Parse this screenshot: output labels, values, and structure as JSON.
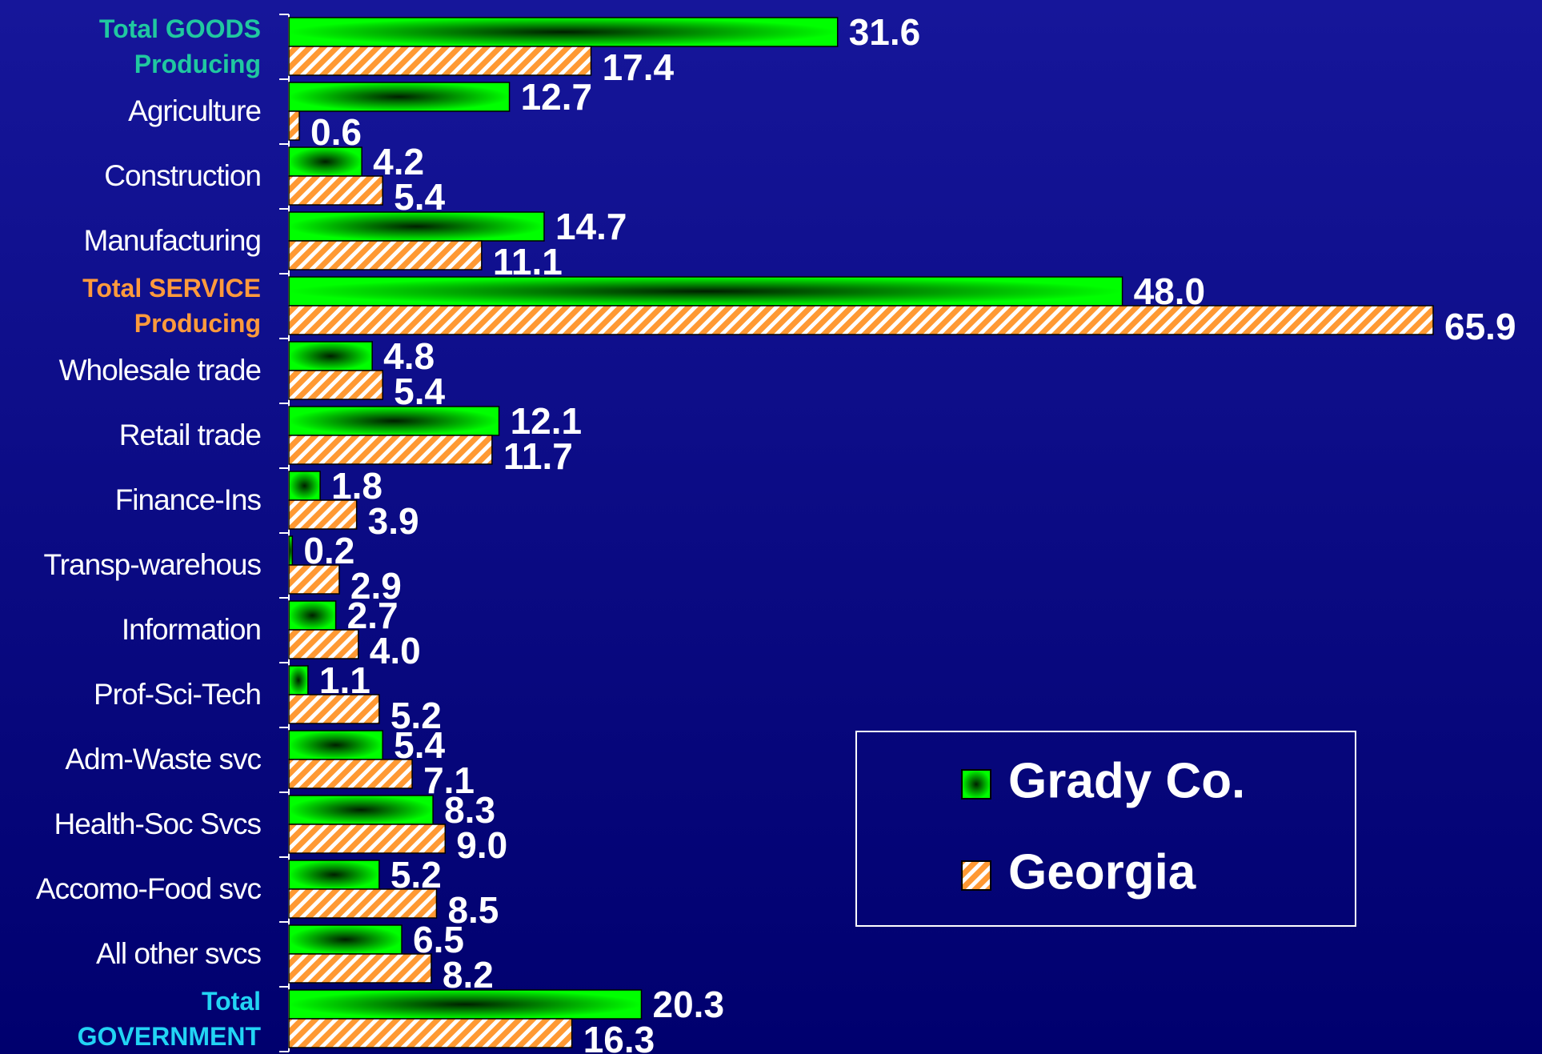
{
  "chart_data": {
    "type": "barh",
    "categories": [
      "Total GOODS\nProducing",
      "Agriculture",
      "Construction",
      "Manufacturing",
      "Total SERVICE\nProducing",
      "Wholesale trade",
      "Retail trade",
      "Finance-Ins",
      "Transp-warehous",
      "Information",
      "Prof-Sci-Tech",
      "Adm-Waste svc",
      "Health-Soc Svcs",
      "Accomo-Food svc",
      "All other svcs",
      "Total\nGOVERNMENT"
    ],
    "category_colors": [
      "#20c8a0",
      "#ffffff",
      "#ffffff",
      "#ffffff",
      "#ff9a3c",
      "#ffffff",
      "#ffffff",
      "#ffffff",
      "#ffffff",
      "#ffffff",
      "#ffffff",
      "#ffffff",
      "#ffffff",
      "#ffffff",
      "#ffffff",
      "#22d4f4"
    ],
    "series": [
      {
        "name": "Grady Co.",
        "color": "#00ff00",
        "values": [
          31.6,
          12.7,
          4.2,
          14.7,
          48.0,
          4.8,
          12.1,
          1.8,
          0.2,
          2.7,
          1.1,
          5.4,
          8.3,
          5.2,
          6.5,
          20.3
        ],
        "value_labels": [
          "31.6",
          "12.7",
          "4.2",
          "14.7",
          "48.0",
          "4.8",
          "12.1",
          "1.8",
          "0.2",
          "2.7",
          "1.1",
          "5.4",
          "8.3",
          "5.2",
          "6.5",
          "20.3"
        ]
      },
      {
        "name": "Georgia",
        "color": "#ff9933",
        "values": [
          17.4,
          0.6,
          5.4,
          11.1,
          65.9,
          5.4,
          11.7,
          3.9,
          2.9,
          4.0,
          5.2,
          7.1,
          9.0,
          8.5,
          8.2,
          16.3
        ],
        "value_labels": [
          "17.4",
          "0.6",
          "5.4",
          "11.1",
          "65.9",
          "5.4",
          "11.7",
          "3.9",
          "2.9",
          "4.0",
          "5.2",
          "7.1",
          "9.0",
          "8.5",
          "8.2",
          "16.3"
        ]
      }
    ],
    "legend": "lower right"
  }
}
